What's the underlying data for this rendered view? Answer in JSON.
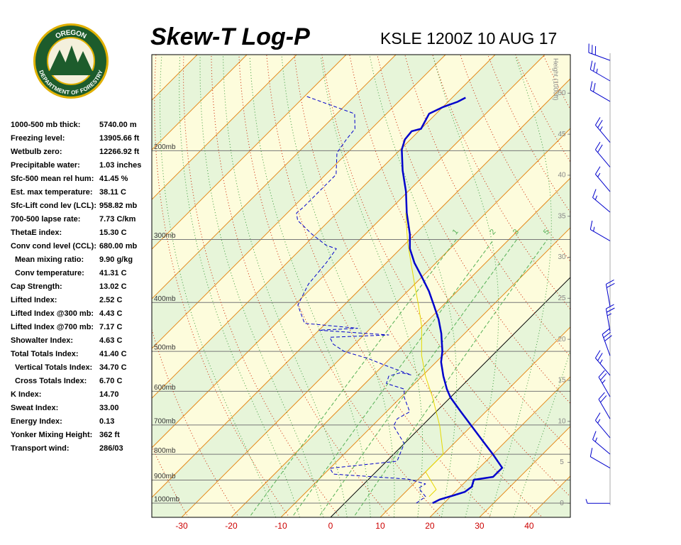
{
  "logo": {
    "top": "OREGON",
    "bottom": "DEPARTMENT OF FORESTRY"
  },
  "stats": [
    [
      "1000-500 mb thick:",
      "5740.00 m"
    ],
    [
      "Freezing level:",
      "13905.66 ft"
    ],
    [
      "Wetbulb zero:",
      "12266.92 ft"
    ],
    [
      "Precipitable water:",
      "1.03 inches"
    ],
    [
      "Sfc-500 mean rel hum:",
      "41.45 %"
    ],
    [
      "Est. max temperature:",
      "38.11 C"
    ],
    [
      "Sfc-Lift cond lev (LCL):",
      "958.82 mb"
    ],
    [
      "700-500 lapse rate:",
      "7.73 C/km"
    ],
    [
      "ThetaE index:",
      "15.30 C"
    ],
    [
      "Conv cond level (CCL):",
      "680.00 mb"
    ],
    [
      "Mean mixing ratio:",
      "9.90 g/kg"
    ],
    [
      "Conv temperature:",
      "41.31 C"
    ],
    [
      "Cap Strength:",
      "13.02 C"
    ],
    [
      "Lifted Index:",
      "2.52 C"
    ],
    [
      "Lifted Index @300 mb:",
      "4.43 C"
    ],
    [
      "Lifted Index @700 mb:",
      "7.17 C"
    ],
    [
      "Showalter Index:",
      "4.63 C"
    ],
    [
      "Total Totals Index:",
      "41.40 C"
    ],
    [
      "Vertical Totals Index:",
      "34.70 C"
    ],
    [
      "Cross Totals Index:",
      "6.70 C"
    ],
    [
      "K Index:",
      "14.70"
    ],
    [
      "Sweat Index:",
      "33.00"
    ],
    [
      "Energy Index:",
      "0.13"
    ],
    [
      "Yonker Mixing Height:",
      "362 ft"
    ],
    [
      "Transport wind:",
      "286/03"
    ]
  ],
  "chart_data": {
    "type": "skewt",
    "title": "Skew-T Log-P",
    "subtitle": "KSLE 1200Z 10 AUG 17",
    "xlim": [
      -36,
      48.3
    ],
    "xticks": [
      -30,
      -20,
      -10,
      0,
      10,
      20,
      30,
      40
    ],
    "y_scale": "log",
    "ylim": [
      1067,
      129
    ],
    "yticks": [
      {
        "value": 1000,
        "label": "1000mb"
      },
      {
        "value": 900,
        "label": "900mb"
      },
      {
        "value": 800,
        "label": "800mb"
      },
      {
        "value": 700,
        "label": "700mb"
      },
      {
        "value": 600,
        "label": "600mb"
      },
      {
        "value": 500,
        "label": "500mb"
      },
      {
        "value": 400,
        "label": "400mb"
      },
      {
        "value": 300,
        "label": "300mb"
      },
      {
        "value": 200,
        "label": "200mb"
      }
    ],
    "height_axis": {
      "label": "Height (1000ft)",
      "lim": [
        -1.7,
        54.7
      ],
      "ticks": [
        0,
        5,
        10,
        15,
        20,
        25,
        30,
        35,
        40,
        45,
        50
      ]
    },
    "mixing_ratios": [
      1,
      2,
      3,
      5
    ],
    "series": [
      {
        "color": "#0000cc",
        "width": 2.5,
        "dash": false,
        "pressure": [
          1000,
          984,
          965,
          950,
          928,
          899,
          887,
          851,
          800,
          750,
          703,
          659,
          617,
          594,
          560,
          525,
          500,
          461,
          432,
          405,
          380,
          356,
          334,
          313,
          293,
          266,
          241,
          219,
          199,
          190,
          183,
          181,
          169,
          164,
          160,
          157
        ],
        "values": [
          17.7,
          18.4,
          20.4,
          21.9,
          22.3,
          21.3,
          24.6,
          24.6,
          20.0,
          15.0,
          10.0,
          5.0,
          0,
          -2.4,
          -5.7,
          -9.0,
          -10.9,
          -14.7,
          -18.1,
          -21.9,
          -25.7,
          -30,
          -34.3,
          -38.1,
          -41,
          -45.9,
          -50.4,
          -55.3,
          -59.7,
          -61.1,
          -61.4,
          -60,
          -61.4,
          -60,
          -58.1,
          -57.3
        ]
      },
      {
        "color": "#0000cc",
        "width": 1,
        "dash": true,
        "pressure": [
          1000,
          971,
          934,
          916,
          896,
          876,
          853,
          840,
          826,
          762,
          703,
          680,
          659,
          617,
          594,
          579,
          560,
          551,
          557,
          534,
          517,
          500,
          484,
          469,
          464,
          454,
          450,
          440,
          405,
          368,
          334,
          313,
          308,
          293,
          275,
          266,
          258,
          223,
          202,
          190,
          181,
          169,
          156
        ],
        "values": [
          14.4,
          15.0,
          11.9,
          12.4,
          7.9,
          -8.1,
          -10,
          -4.3,
          2.1,
          0,
          -5.7,
          -6.4,
          -5.3,
          -9.3,
          -11,
          -15.7,
          -16.7,
          -15,
          -12.4,
          -19.3,
          -24.3,
          -30.7,
          -34.3,
          -36.4,
          -25,
          -40,
          -32.6,
          -44.3,
          -49.3,
          -51.4,
          -52.1,
          -52.9,
          -55.7,
          -60.7,
          -66.4,
          -68.1,
          -67.9,
          -67.9,
          -72.1,
          -72.9,
          -73.3,
          -76.4,
          -89.7
        ]
      },
      {
        "color": "#e6d800",
        "width": 1,
        "dash": false,
        "pressure": [
          971,
          940,
          867,
          800,
          703,
          617,
          560,
          509,
          447,
          405,
          368,
          334,
          303,
          266
        ],
        "values": [
          15.7,
          15.7,
          10,
          10,
          3.6,
          -3.6,
          -9.3,
          -14.3,
          -20,
          -25,
          -30,
          -35,
          -40,
          -46.1
        ]
      }
    ],
    "winds": {
      "heights": [
        0,
        4.3,
        6,
        8,
        10.3,
        13,
        15.6,
        18,
        21,
        24,
        32,
        35.5,
        38,
        41,
        44,
        49,
        51.5,
        54
      ],
      "directions": [
        270,
        300,
        310,
        320,
        330,
        330,
        320,
        340,
        350,
        350,
        300,
        310,
        320,
        320,
        320,
        300,
        300,
        290
      ],
      "speeds": [
        5,
        10,
        15,
        15,
        20,
        25,
        25,
        30,
        25,
        20,
        15,
        15,
        15,
        20,
        25,
        20,
        25,
        30
      ],
      "color": "#0000cc"
    }
  }
}
